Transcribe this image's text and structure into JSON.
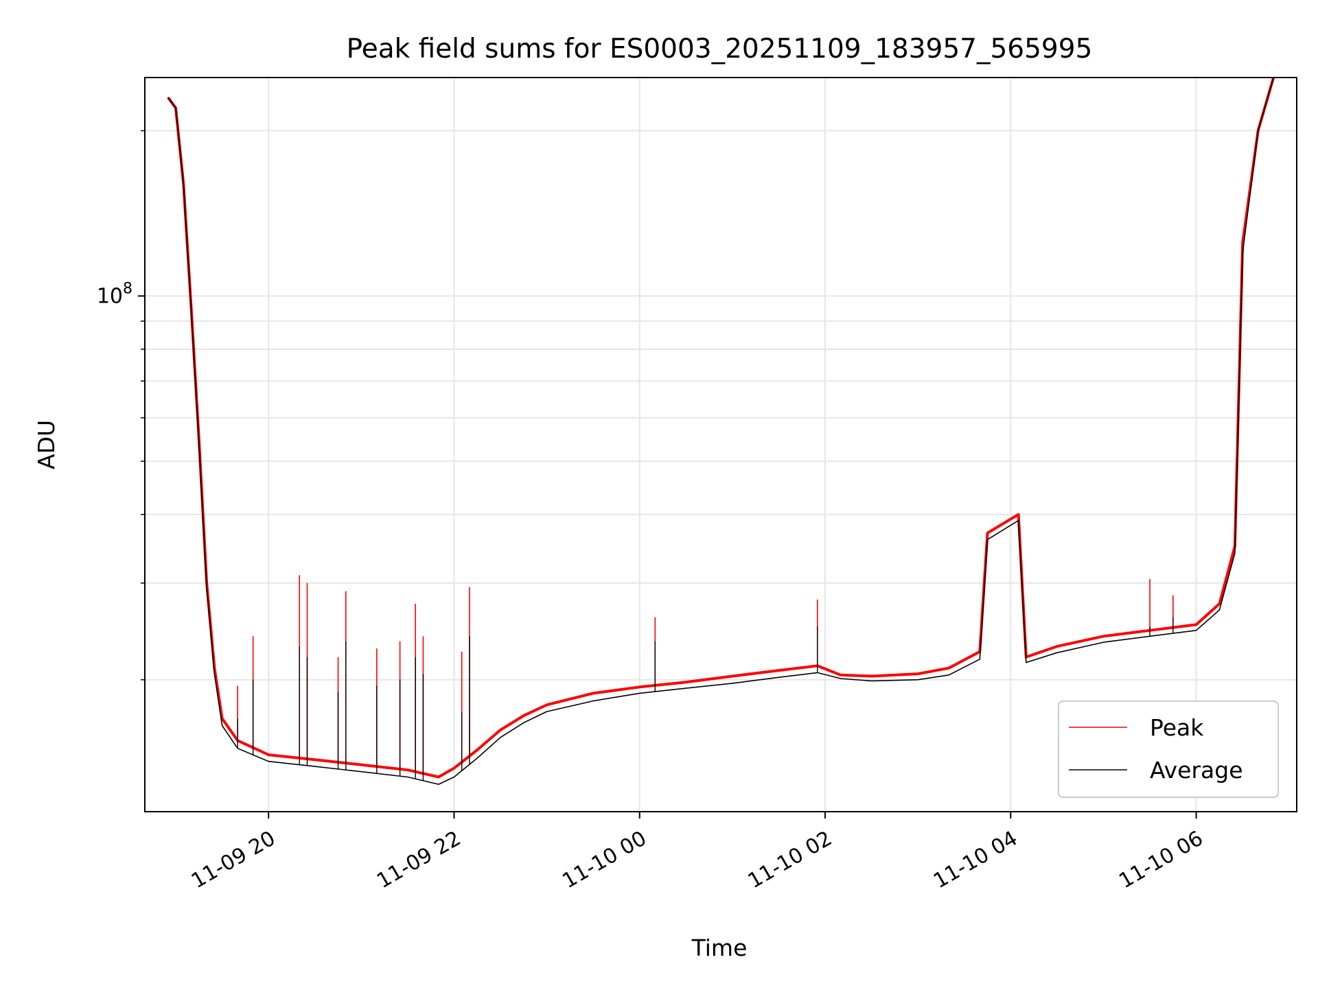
{
  "chart_data": {
    "type": "line",
    "title": "Peak field sums for ES0003_20251109_183957_565995",
    "xlabel": "Time",
    "ylabel": "ADU",
    "yscale": "log",
    "xlim": [
      "2025-11-09 18:40",
      "2025-11-10 07:05"
    ],
    "ylim": [
      11500000,
      250000000
    ],
    "x_ticks": [
      "11-09 20",
      "11-09 22",
      "11-10 00",
      "11-10 02",
      "11-10 04",
      "11-10 06"
    ],
    "y_ticks": [
      {
        "value": 100000000,
        "base": "10",
        "exp": "8"
      }
    ],
    "grid": true,
    "legend": {
      "position": "lower-right",
      "entries": [
        "Peak",
        "Average"
      ]
    },
    "series": [
      {
        "name": "Peak",
        "color": "#ff0000",
        "points": [
          [
            "2025-11-09 18:55",
            230000000
          ],
          [
            "2025-11-09 19:00",
            220000000
          ],
          [
            "2025-11-09 19:05",
            160000000
          ],
          [
            "2025-11-09 19:10",
            95000000
          ],
          [
            "2025-11-09 19:15",
            55000000
          ],
          [
            "2025-11-09 19:20",
            30000000
          ],
          [
            "2025-11-09 19:25",
            21000000
          ],
          [
            "2025-11-09 19:30",
            17000000
          ],
          [
            "2025-11-09 19:40",
            15500000
          ],
          [
            "2025-11-09 20:00",
            14600000
          ],
          [
            "2025-11-09 20:30",
            14300000
          ],
          [
            "2025-11-09 21:00",
            14000000
          ],
          [
            "2025-11-09 21:30",
            13700000
          ],
          [
            "2025-11-09 21:50",
            13300000
          ],
          [
            "2025-11-09 22:00",
            13800000
          ],
          [
            "2025-11-09 22:15",
            14900000
          ],
          [
            "2025-11-09 22:30",
            16200000
          ],
          [
            "2025-11-09 22:45",
            17200000
          ],
          [
            "2025-11-09 23:00",
            18000000
          ],
          [
            "2025-11-09 23:30",
            18900000
          ],
          [
            "2025-11-10 00:00",
            19400000
          ],
          [
            "2025-11-10 00:30",
            19800000
          ],
          [
            "2025-11-10 01:00",
            20300000
          ],
          [
            "2025-11-10 01:30",
            20800000
          ],
          [
            "2025-11-10 01:55",
            21200000
          ],
          [
            "2025-11-10 02:10",
            20400000
          ],
          [
            "2025-11-10 02:30",
            20300000
          ],
          [
            "2025-11-10 03:00",
            20500000
          ],
          [
            "2025-11-10 03:20",
            21000000
          ],
          [
            "2025-11-10 03:40",
            22500000
          ],
          [
            "2025-11-10 03:45",
            37000000
          ],
          [
            "2025-11-10 04:05",
            40000000
          ],
          [
            "2025-11-10 04:10",
            22000000
          ],
          [
            "2025-11-10 04:30",
            23000000
          ],
          [
            "2025-11-10 05:00",
            24000000
          ],
          [
            "2025-11-10 05:30",
            24600000
          ],
          [
            "2025-11-10 06:00",
            25200000
          ],
          [
            "2025-11-10 06:15",
            27500000
          ],
          [
            "2025-11-10 06:25",
            35000000
          ],
          [
            "2025-11-10 06:30",
            125000000
          ],
          [
            "2025-11-10 06:40",
            200000000
          ],
          [
            "2025-11-10 06:50",
            250000000
          ]
        ]
      },
      {
        "name": "Average",
        "color": "#000000",
        "points": [
          [
            "2025-11-09 18:55",
            230000000
          ],
          [
            "2025-11-09 19:00",
            220000000
          ],
          [
            "2025-11-09 19:05",
            160000000
          ],
          [
            "2025-11-09 19:10",
            94000000
          ],
          [
            "2025-11-09 19:15",
            54000000
          ],
          [
            "2025-11-09 19:20",
            29500000
          ],
          [
            "2025-11-09 19:25",
            20500000
          ],
          [
            "2025-11-09 19:30",
            16500000
          ],
          [
            "2025-11-09 19:40",
            15000000
          ],
          [
            "2025-11-09 20:00",
            14200000
          ],
          [
            "2025-11-09 20:30",
            13900000
          ],
          [
            "2025-11-09 21:00",
            13600000
          ],
          [
            "2025-11-09 21:30",
            13300000
          ],
          [
            "2025-11-09 21:50",
            12900000
          ],
          [
            "2025-11-09 22:00",
            13300000
          ],
          [
            "2025-11-09 22:15",
            14400000
          ],
          [
            "2025-11-09 22:30",
            15700000
          ],
          [
            "2025-11-09 22:45",
            16700000
          ],
          [
            "2025-11-09 23:00",
            17500000
          ],
          [
            "2025-11-09 23:30",
            18300000
          ],
          [
            "2025-11-10 00:00",
            18900000
          ],
          [
            "2025-11-10 00:30",
            19300000
          ],
          [
            "2025-11-10 01:00",
            19700000
          ],
          [
            "2025-11-10 01:30",
            20200000
          ],
          [
            "2025-11-10 01:55",
            20600000
          ],
          [
            "2025-11-10 02:10",
            20100000
          ],
          [
            "2025-11-10 02:30",
            19900000
          ],
          [
            "2025-11-10 03:00",
            20000000
          ],
          [
            "2025-11-10 03:20",
            20400000
          ],
          [
            "2025-11-10 03:40",
            21800000
          ],
          [
            "2025-11-10 03:45",
            36000000
          ],
          [
            "2025-11-10 04:05",
            39000000
          ],
          [
            "2025-11-10 04:10",
            21500000
          ],
          [
            "2025-11-10 04:30",
            22400000
          ],
          [
            "2025-11-10 05:00",
            23400000
          ],
          [
            "2025-11-10 05:30",
            24000000
          ],
          [
            "2025-11-10 06:00",
            24600000
          ],
          [
            "2025-11-10 06:15",
            26800000
          ],
          [
            "2025-11-10 06:25",
            34000000
          ],
          [
            "2025-11-10 06:30",
            120000000
          ],
          [
            "2025-11-10 06:40",
            200000000
          ],
          [
            "2025-11-10 06:50",
            250000000
          ]
        ]
      }
    ],
    "spikes": [
      {
        "x": "2025-11-09 19:40",
        "peak": 19500000,
        "average": 17000000
      },
      {
        "x": "2025-11-09 19:50",
        "peak": 24000000,
        "average": 20000000
      },
      {
        "x": "2025-11-09 20:20",
        "peak": 31000000,
        "average": 23000000
      },
      {
        "x": "2025-11-09 20:25",
        "peak": 30000000,
        "average": 22000000
      },
      {
        "x": "2025-11-09 20:45",
        "peak": 22000000,
        "average": 19000000
      },
      {
        "x": "2025-11-09 20:50",
        "peak": 29000000,
        "average": 23500000
      },
      {
        "x": "2025-11-09 21:10",
        "peak": 22800000,
        "average": 19500000
      },
      {
        "x": "2025-11-09 21:25",
        "peak": 23500000,
        "average": 20000000
      },
      {
        "x": "2025-11-09 21:35",
        "peak": 27500000,
        "average": 22000000
      },
      {
        "x": "2025-11-09 21:40",
        "peak": 24000000,
        "average": 20500000
      },
      {
        "x": "2025-11-09 22:05",
        "peak": 22500000,
        "average": 17500000
      },
      {
        "x": "2025-11-09 22:10",
        "peak": 29500000,
        "average": 24000000
      },
      {
        "x": "2025-11-10 01:55",
        "peak": 28000000,
        "average": 25000000
      },
      {
        "x": "2025-11-10 00:10",
        "peak": 26000000,
        "average": 23500000
      },
      {
        "x": "2025-11-10 05:30",
        "peak": 30500000,
        "average": 25000000
      },
      {
        "x": "2025-11-10 05:45",
        "peak": 28500000,
        "average": 26000000
      }
    ]
  }
}
